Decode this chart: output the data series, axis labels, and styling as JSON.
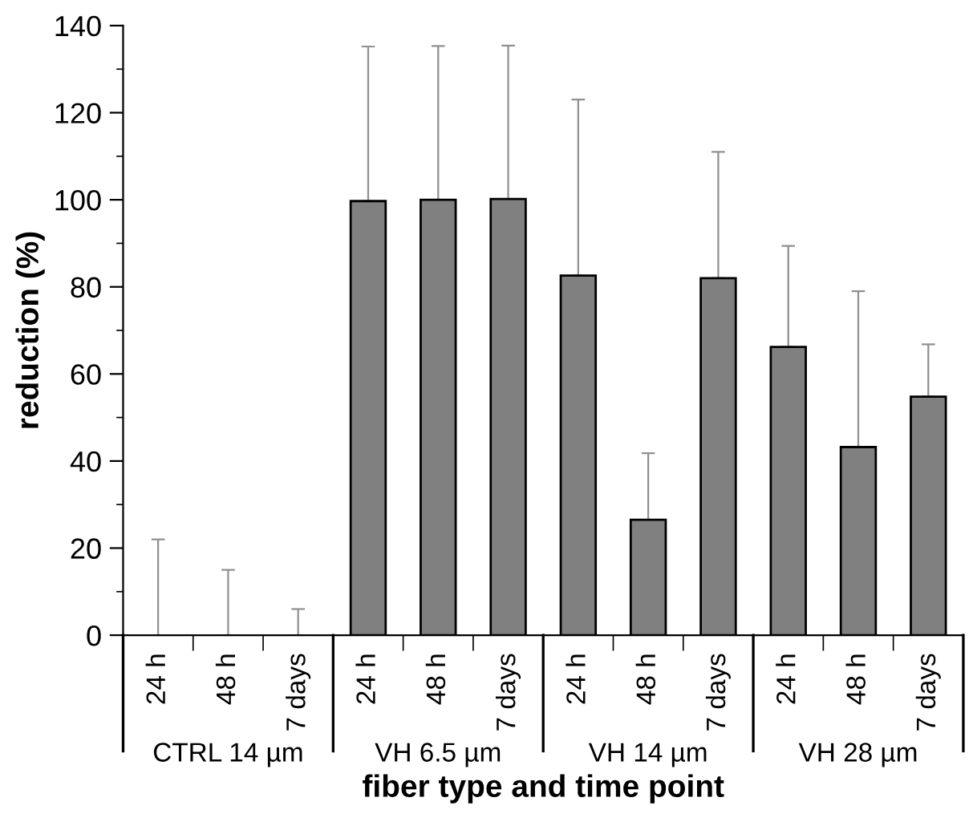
{
  "chart_data": {
    "type": "bar",
    "categories": [
      "24 h",
      "48 h",
      "7 days",
      "24 h",
      "48 h",
      "7 days",
      "24 h",
      "48 h",
      "7 days",
      "24 h",
      "48 h",
      "7 days"
    ],
    "values": [
      0,
      0,
      0,
      99.7,
      100,
      100.2,
      82.6,
      26.5,
      82,
      66.2,
      43.2,
      54.8
    ],
    "errors": [
      [
        0,
        22
      ],
      [
        0,
        15
      ],
      [
        0,
        6
      ],
      [
        99.7,
        135.2
      ],
      [
        100,
        135.3
      ],
      [
        100.2,
        135.4
      ],
      [
        82.6,
        123
      ],
      [
        26.5,
        41.8
      ],
      [
        82,
        111
      ],
      [
        66.2,
        89.4
      ],
      [
        43.2,
        79
      ],
      [
        54.8,
        66.8
      ]
    ],
    "color": "#808080",
    "xlabel": "fiber type and time point",
    "ylabel": "reduction (%)",
    "annotations": [
      "CTRL 14 µm",
      "VH 6.5 µm",
      "VH 14 µm",
      "VH 28 µm"
    ],
    "ylim": [
      0,
      140
    ],
    "yticks": [
      0,
      20,
      40,
      60,
      80,
      100,
      120,
      140
    ],
    "grid": false,
    "legend": false
  }
}
